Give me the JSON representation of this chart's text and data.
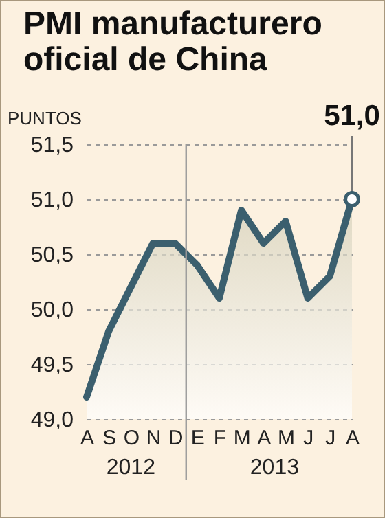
{
  "chart_data": {
    "type": "area",
    "title": "PMI manufacturero oficial de China",
    "ylabel": "PUNTOS",
    "categories": [
      "A",
      "S",
      "O",
      "N",
      "D",
      "E",
      "F",
      "M",
      "A",
      "M",
      "J",
      "J",
      "A"
    ],
    "series": [
      {
        "color": "#3b5f6e",
        "values": [
          49.2,
          49.8,
          50.2,
          50.6,
          50.6,
          50.4,
          50.1,
          50.9,
          50.6,
          50.8,
          50.1,
          50.3,
          51.0
        ]
      }
    ],
    "ylim": [
      49.0,
      51.5
    ],
    "yticks": [
      {
        "value": 49.0,
        "label": "49,0"
      },
      {
        "value": 49.5,
        "label": "49,5"
      },
      {
        "value": 50.0,
        "label": "50,0"
      },
      {
        "value": 50.5,
        "label": "50,5"
      },
      {
        "value": 51.0,
        "label": "51,0"
      },
      {
        "value": 51.5,
        "label": "51,5"
      }
    ],
    "grid": "y",
    "ref_lines": [
      {
        "axis": "x",
        "value": "E",
        "color": "#9a9a9a"
      }
    ],
    "annotations": [
      {
        "text": "51,0",
        "y": 51.0
      },
      "2012",
      "2013"
    ]
  }
}
